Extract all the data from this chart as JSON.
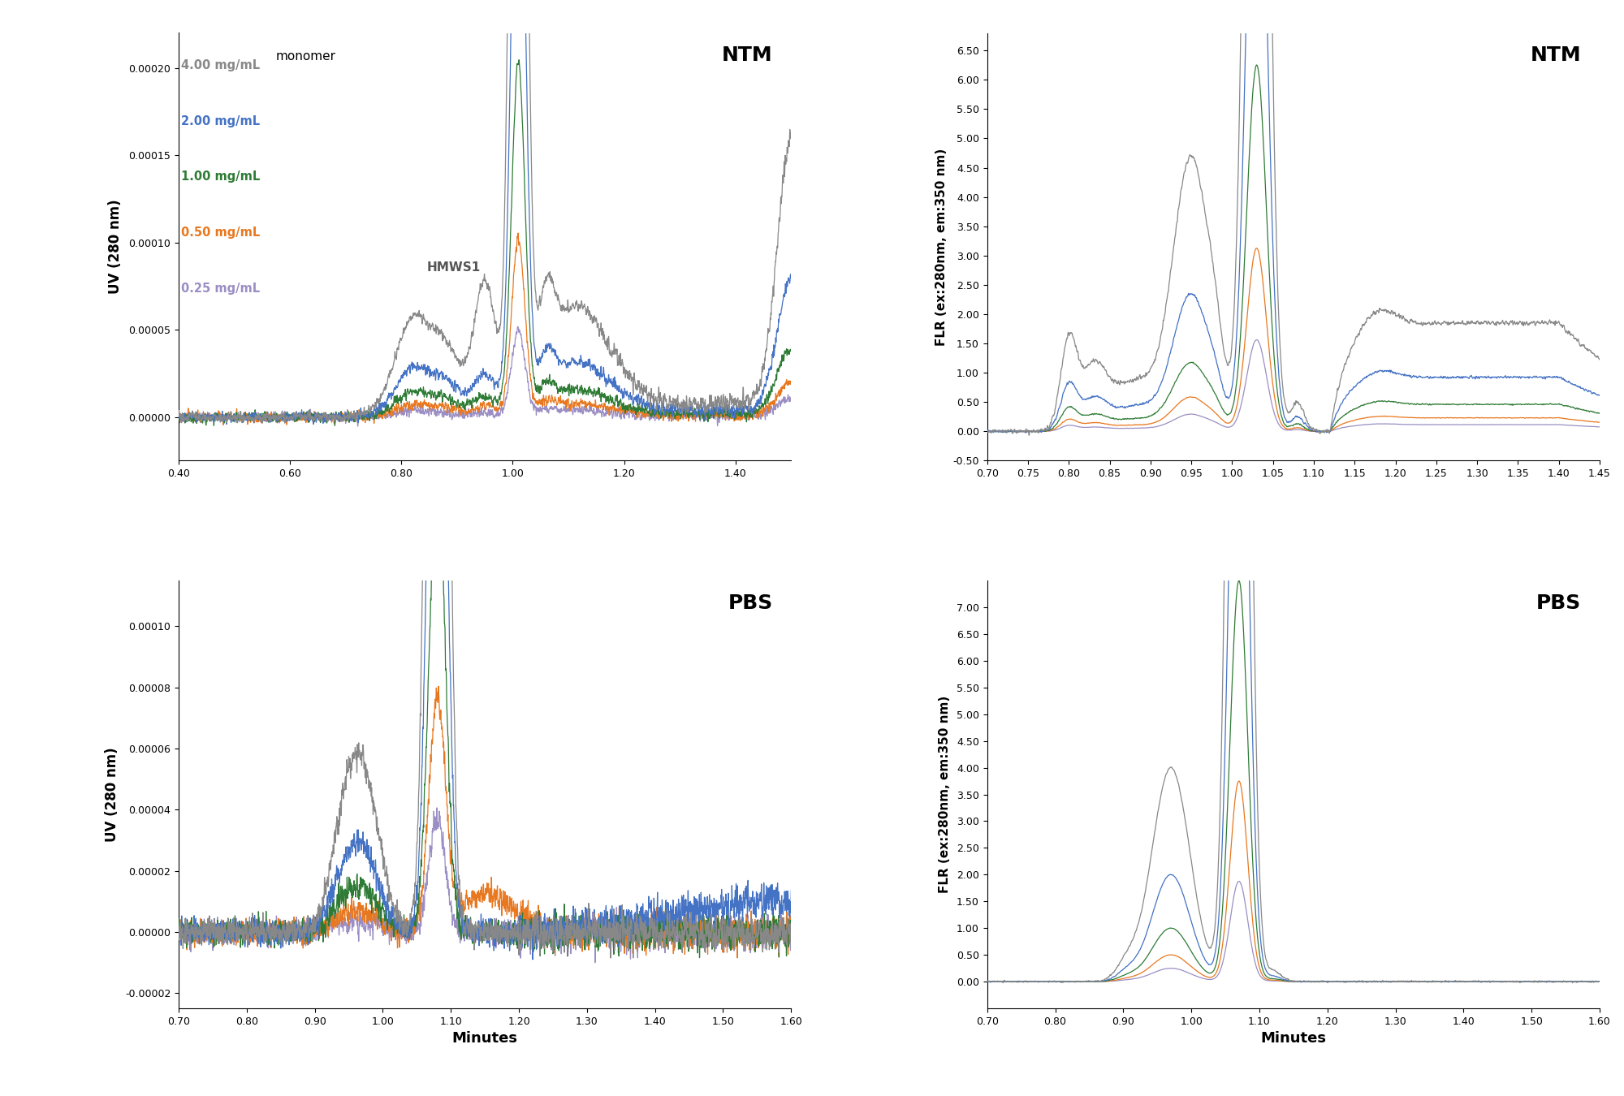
{
  "colors": {
    "4.00": "#888888",
    "2.00": "#4472C4",
    "1.00": "#2E7B35",
    "0.50": "#E87820",
    "0.25": "#9B8EC4"
  },
  "legend_labels": [
    "4.00 mg/mL",
    "2.00 mg/mL",
    "1.00 mg/mL",
    "0.50 mg/mL",
    "0.25 mg/mL"
  ],
  "legend_colors": [
    "#888888",
    "#4472C4",
    "#2E7B35",
    "#E87820",
    "#9B8EC4"
  ],
  "ylabel_uv": "UV (280 nm)",
  "ylabel_flr": "FLR (ex:280nm, em:350 nm)",
  "xlabel": "Minutes",
  "title_ntm": "NTM",
  "title_pbs": "PBS",
  "label_monomer": "monomer",
  "label_hmws": "HMWS1",
  "uv_ntm_xlim": [
    0.4,
    1.5
  ],
  "uv_ntm_ylim": [
    -2.5e-05,
    0.00022
  ],
  "uv_ntm_yticks": [
    0.0,
    5e-05,
    0.0001,
    0.00015,
    0.0002
  ],
  "uv_ntm_xticks": [
    0.4,
    0.6,
    0.8,
    1.0,
    1.2,
    1.4
  ],
  "uv_pbs_xlim": [
    0.7,
    1.6
  ],
  "uv_pbs_ylim": [
    -2.5e-05,
    0.000115
  ],
  "uv_pbs_yticks": [
    -2e-05,
    0.0,
    2e-05,
    4e-05,
    6e-05,
    8e-05,
    0.0001
  ],
  "uv_pbs_xticks": [
    0.7,
    0.8,
    0.9,
    1.0,
    1.1,
    1.2,
    1.3,
    1.4,
    1.5,
    1.6
  ],
  "flr_ntm_xlim": [
    0.7,
    1.45
  ],
  "flr_ntm_ylim": [
    -0.5,
    6.8
  ],
  "flr_ntm_yticks": [
    -0.5,
    0.0,
    0.5,
    1.0,
    1.5,
    2.0,
    2.5,
    3.0,
    3.5,
    4.0,
    4.5,
    5.0,
    5.5,
    6.0,
    6.5
  ],
  "flr_ntm_xticks": [
    0.7,
    0.75,
    0.8,
    0.85,
    0.9,
    0.95,
    1.0,
    1.05,
    1.1,
    1.15,
    1.2,
    1.25,
    1.3,
    1.35,
    1.4,
    1.45
  ],
  "flr_pbs_xlim": [
    0.7,
    1.6
  ],
  "flr_pbs_ylim": [
    -0.5,
    7.5
  ],
  "flr_pbs_yticks": [
    0.0,
    0.5,
    1.0,
    1.5,
    2.0,
    2.5,
    3.0,
    3.5,
    4.0,
    4.5,
    5.0,
    5.5,
    6.0,
    6.5,
    7.0
  ],
  "flr_pbs_xticks": [
    0.7,
    0.8,
    0.9,
    1.0,
    1.1,
    1.2,
    1.3,
    1.4,
    1.5,
    1.6
  ],
  "scales": [
    1.0,
    0.5,
    0.25,
    0.125,
    0.0625
  ]
}
